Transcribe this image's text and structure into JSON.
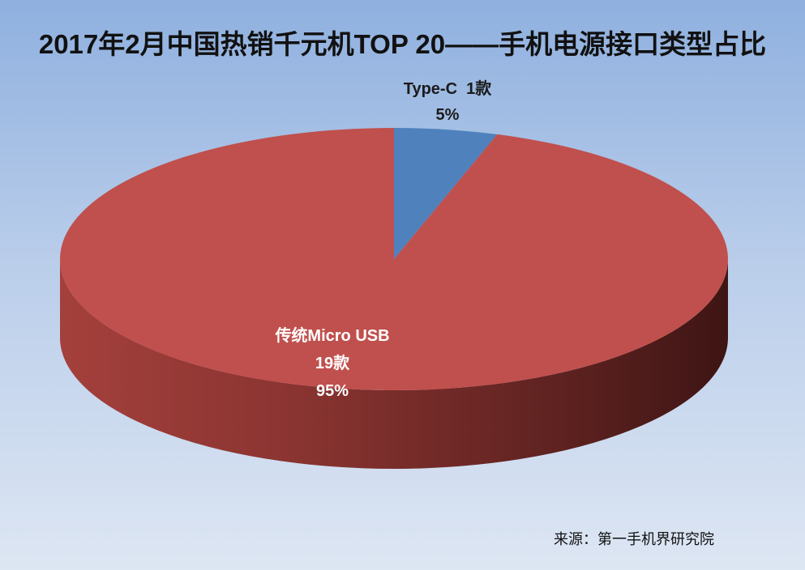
{
  "chart_data": {
    "type": "pie",
    "title": "2017年2月中国热销千元机TOP 20——手机电源接口类型占比",
    "slices": [
      {
        "label": "Type-C",
        "count": "1款",
        "percent": "5%",
        "value": 5,
        "color": "#4f81bd"
      },
      {
        "label": "传统Micro USB",
        "count": "19款",
        "percent": "95%",
        "value": 95,
        "color": "#c0504d"
      }
    ],
    "source": "来源：第一手机界研究院"
  }
}
